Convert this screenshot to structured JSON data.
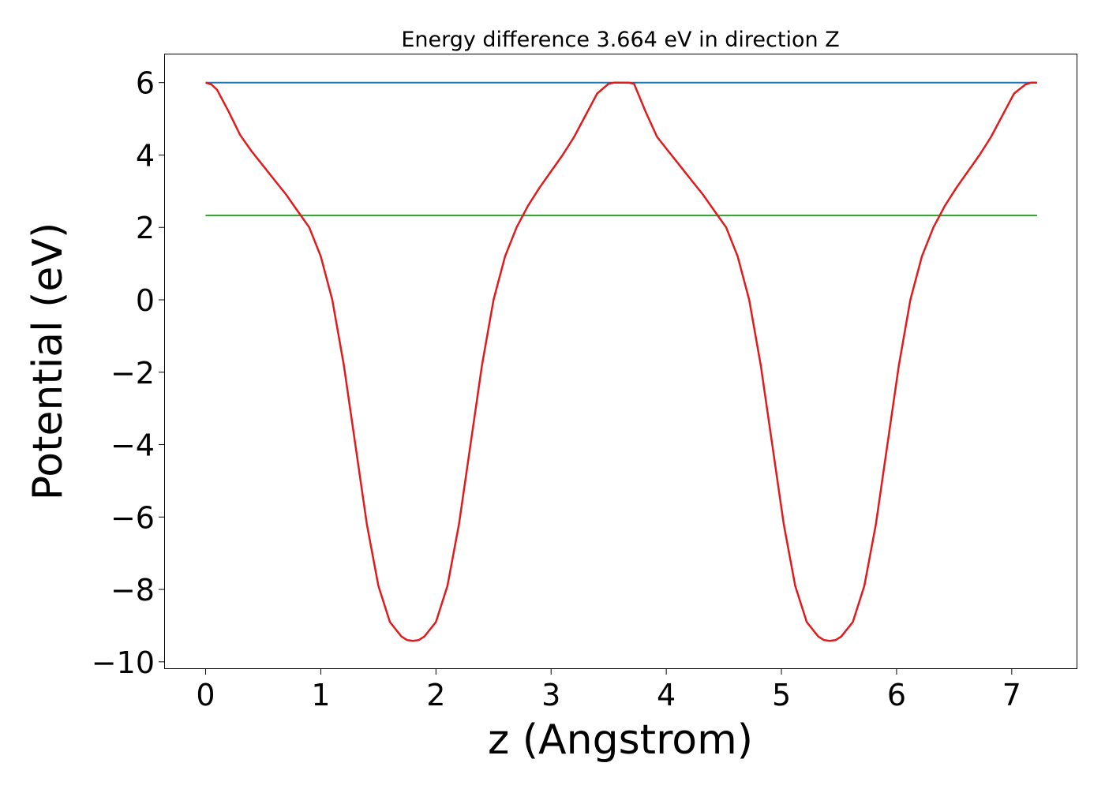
{
  "chart_data": {
    "type": "line",
    "title": "Energy difference 3.664 eV in direction Z",
    "xlabel": "z (Angstrom)",
    "ylabel": "Potential (eV)",
    "xlim": [
      -0.36,
      7.57
    ],
    "ylim": [
      -10.2,
      6.8
    ],
    "x_ticks": [
      0,
      1,
      2,
      3,
      4,
      5,
      6,
      7
    ],
    "x_tick_labels": [
      "0",
      "1",
      "2",
      "3",
      "4",
      "5",
      "6",
      "7"
    ],
    "y_ticks": [
      -10,
      -8,
      -6,
      -4,
      -2,
      0,
      2,
      4,
      6
    ],
    "y_tick_labels": [
      "−10",
      "−8",
      "−6",
      "−4",
      "−2",
      "0",
      "2",
      "4",
      "6"
    ],
    "grid": false,
    "series": [
      {
        "color": "#1f77b4",
        "x": [
          0,
          7.22
        ],
        "y": [
          6.0,
          6.0
        ]
      },
      {
        "color": "#2ca02c",
        "x": [
          0,
          7.22
        ],
        "y": [
          2.33,
          2.33
        ]
      },
      {
        "color": "#e31a1c",
        "x": [
          0,
          0.05,
          0.1,
          0.2,
          0.3,
          0.4,
          0.5,
          0.6,
          0.7,
          0.8,
          0.9,
          1.0,
          1.1,
          1.2,
          1.3,
          1.4,
          1.5,
          1.6,
          1.7,
          1.75,
          1.8,
          1.85,
          1.9,
          2.0,
          2.1,
          2.2,
          2.3,
          2.4,
          2.5,
          2.6,
          2.7,
          2.8,
          2.9,
          3.0,
          3.1,
          3.2,
          3.3,
          3.4,
          3.5,
          3.55,
          3.61,
          3.67,
          3.72,
          3.82,
          3.92,
          4.02,
          4.12,
          4.22,
          4.32,
          4.42,
          4.52,
          4.62,
          4.72,
          4.82,
          4.92,
          5.02,
          5.12,
          5.22,
          5.32,
          5.37,
          5.42,
          5.47,
          5.52,
          5.62,
          5.72,
          5.82,
          5.92,
          6.02,
          6.12,
          6.22,
          6.32,
          6.42,
          6.52,
          6.62,
          6.72,
          6.82,
          6.92,
          7.02,
          7.12,
          7.17,
          7.22
        ],
        "y": [
          6.0,
          5.95,
          5.8,
          5.2,
          4.55,
          4.1,
          3.7,
          3.3,
          2.9,
          2.45,
          2.0,
          1.2,
          0.0,
          -1.8,
          -4.0,
          -6.2,
          -7.9,
          -8.9,
          -9.3,
          -9.4,
          -9.42,
          -9.4,
          -9.3,
          -8.9,
          -7.9,
          -6.2,
          -4.0,
          -1.8,
          0.0,
          1.2,
          2.0,
          2.6,
          3.1,
          3.55,
          4.0,
          4.5,
          5.1,
          5.7,
          5.97,
          6.0,
          6.0,
          6.0,
          5.97,
          5.2,
          4.5,
          4.1,
          3.7,
          3.3,
          2.9,
          2.45,
          2.0,
          1.2,
          0.0,
          -1.8,
          -4.0,
          -6.2,
          -7.9,
          -8.9,
          -9.3,
          -9.4,
          -9.42,
          -9.4,
          -9.3,
          -8.9,
          -7.9,
          -6.2,
          -4.0,
          -1.8,
          0.0,
          1.2,
          2.0,
          2.6,
          3.1,
          3.55,
          4.0,
          4.5,
          5.1,
          5.7,
          5.95,
          6.0,
          6.0
        ]
      }
    ]
  }
}
